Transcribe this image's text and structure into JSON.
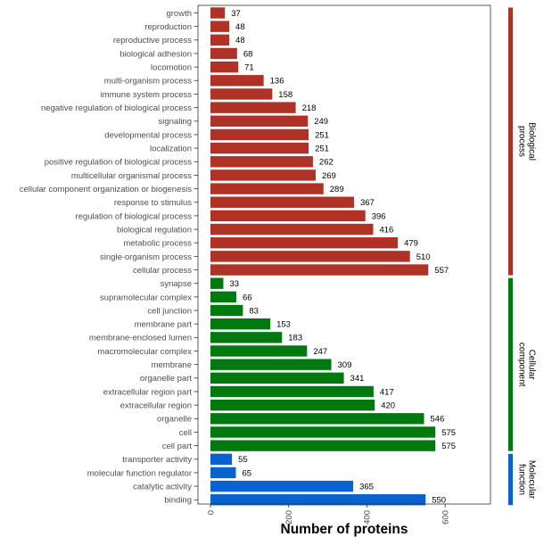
{
  "chart_data": {
    "type": "bar",
    "orientation": "horizontal",
    "xlabel": "Number of proteins",
    "ylabel": "",
    "xlim": [
      0,
      700
    ],
    "x_ticks": [
      0,
      200,
      400,
      600
    ],
    "grid": false,
    "groups": [
      {
        "name": "Biological process",
        "color": "#b03226"
      },
      {
        "name": "Cellular component",
        "color": "#007a0e"
      },
      {
        "name": "Molecular function",
        "color": "#0862cf"
      }
    ],
    "categories": [
      {
        "label": "growth",
        "value": 37,
        "group": 0
      },
      {
        "label": "reproduction",
        "value": 48,
        "group": 0
      },
      {
        "label": "reproductive process",
        "value": 48,
        "group": 0
      },
      {
        "label": "biological adhesion",
        "value": 68,
        "group": 0
      },
      {
        "label": "locomotion",
        "value": 71,
        "group": 0
      },
      {
        "label": "multi-organism process",
        "value": 136,
        "group": 0
      },
      {
        "label": "immune system process",
        "value": 158,
        "group": 0
      },
      {
        "label": "negative regulation of biological process",
        "value": 218,
        "group": 0
      },
      {
        "label": "signaling",
        "value": 249,
        "group": 0
      },
      {
        "label": "developmental process",
        "value": 251,
        "group": 0
      },
      {
        "label": "localization",
        "value": 251,
        "group": 0
      },
      {
        "label": "positive regulation of biological process",
        "value": 262,
        "group": 0
      },
      {
        "label": "multicellular organismal process",
        "value": 269,
        "group": 0
      },
      {
        "label": "cellular component organization or biogenesis",
        "value": 289,
        "group": 0
      },
      {
        "label": "response to stimulus",
        "value": 367,
        "group": 0
      },
      {
        "label": "regulation of biological process",
        "value": 396,
        "group": 0
      },
      {
        "label": "biological regulation",
        "value": 416,
        "group": 0
      },
      {
        "label": "metabolic process",
        "value": 479,
        "group": 0
      },
      {
        "label": "single-organism process",
        "value": 510,
        "group": 0
      },
      {
        "label": "cellular process",
        "value": 557,
        "group": 0
      },
      {
        "label": "synapse",
        "value": 33,
        "group": 1
      },
      {
        "label": "supramolecular complex",
        "value": 66,
        "group": 1
      },
      {
        "label": "cell junction",
        "value": 83,
        "group": 1
      },
      {
        "label": "membrane part",
        "value": 153,
        "group": 1
      },
      {
        "label": "membrane-enclosed lumen",
        "value": 183,
        "group": 1
      },
      {
        "label": "macromolecular complex",
        "value": 247,
        "group": 1
      },
      {
        "label": "membrane",
        "value": 309,
        "group": 1
      },
      {
        "label": "organelle part",
        "value": 341,
        "group": 1
      },
      {
        "label": "extracellular region part",
        "value": 417,
        "group": 1
      },
      {
        "label": "extracellular region",
        "value": 420,
        "group": 1
      },
      {
        "label": "organelle",
        "value": 546,
        "group": 1
      },
      {
        "label": "cell",
        "value": 575,
        "group": 1
      },
      {
        "label": "cell part",
        "value": 575,
        "group": 1
      },
      {
        "label": "transporter activity",
        "value": 55,
        "group": 2
      },
      {
        "label": "molecular function regulator",
        "value": 65,
        "group": 2
      },
      {
        "label": "catalytic activity",
        "value": 365,
        "group": 2
      },
      {
        "label": "binding",
        "value": 550,
        "group": 2
      }
    ]
  }
}
